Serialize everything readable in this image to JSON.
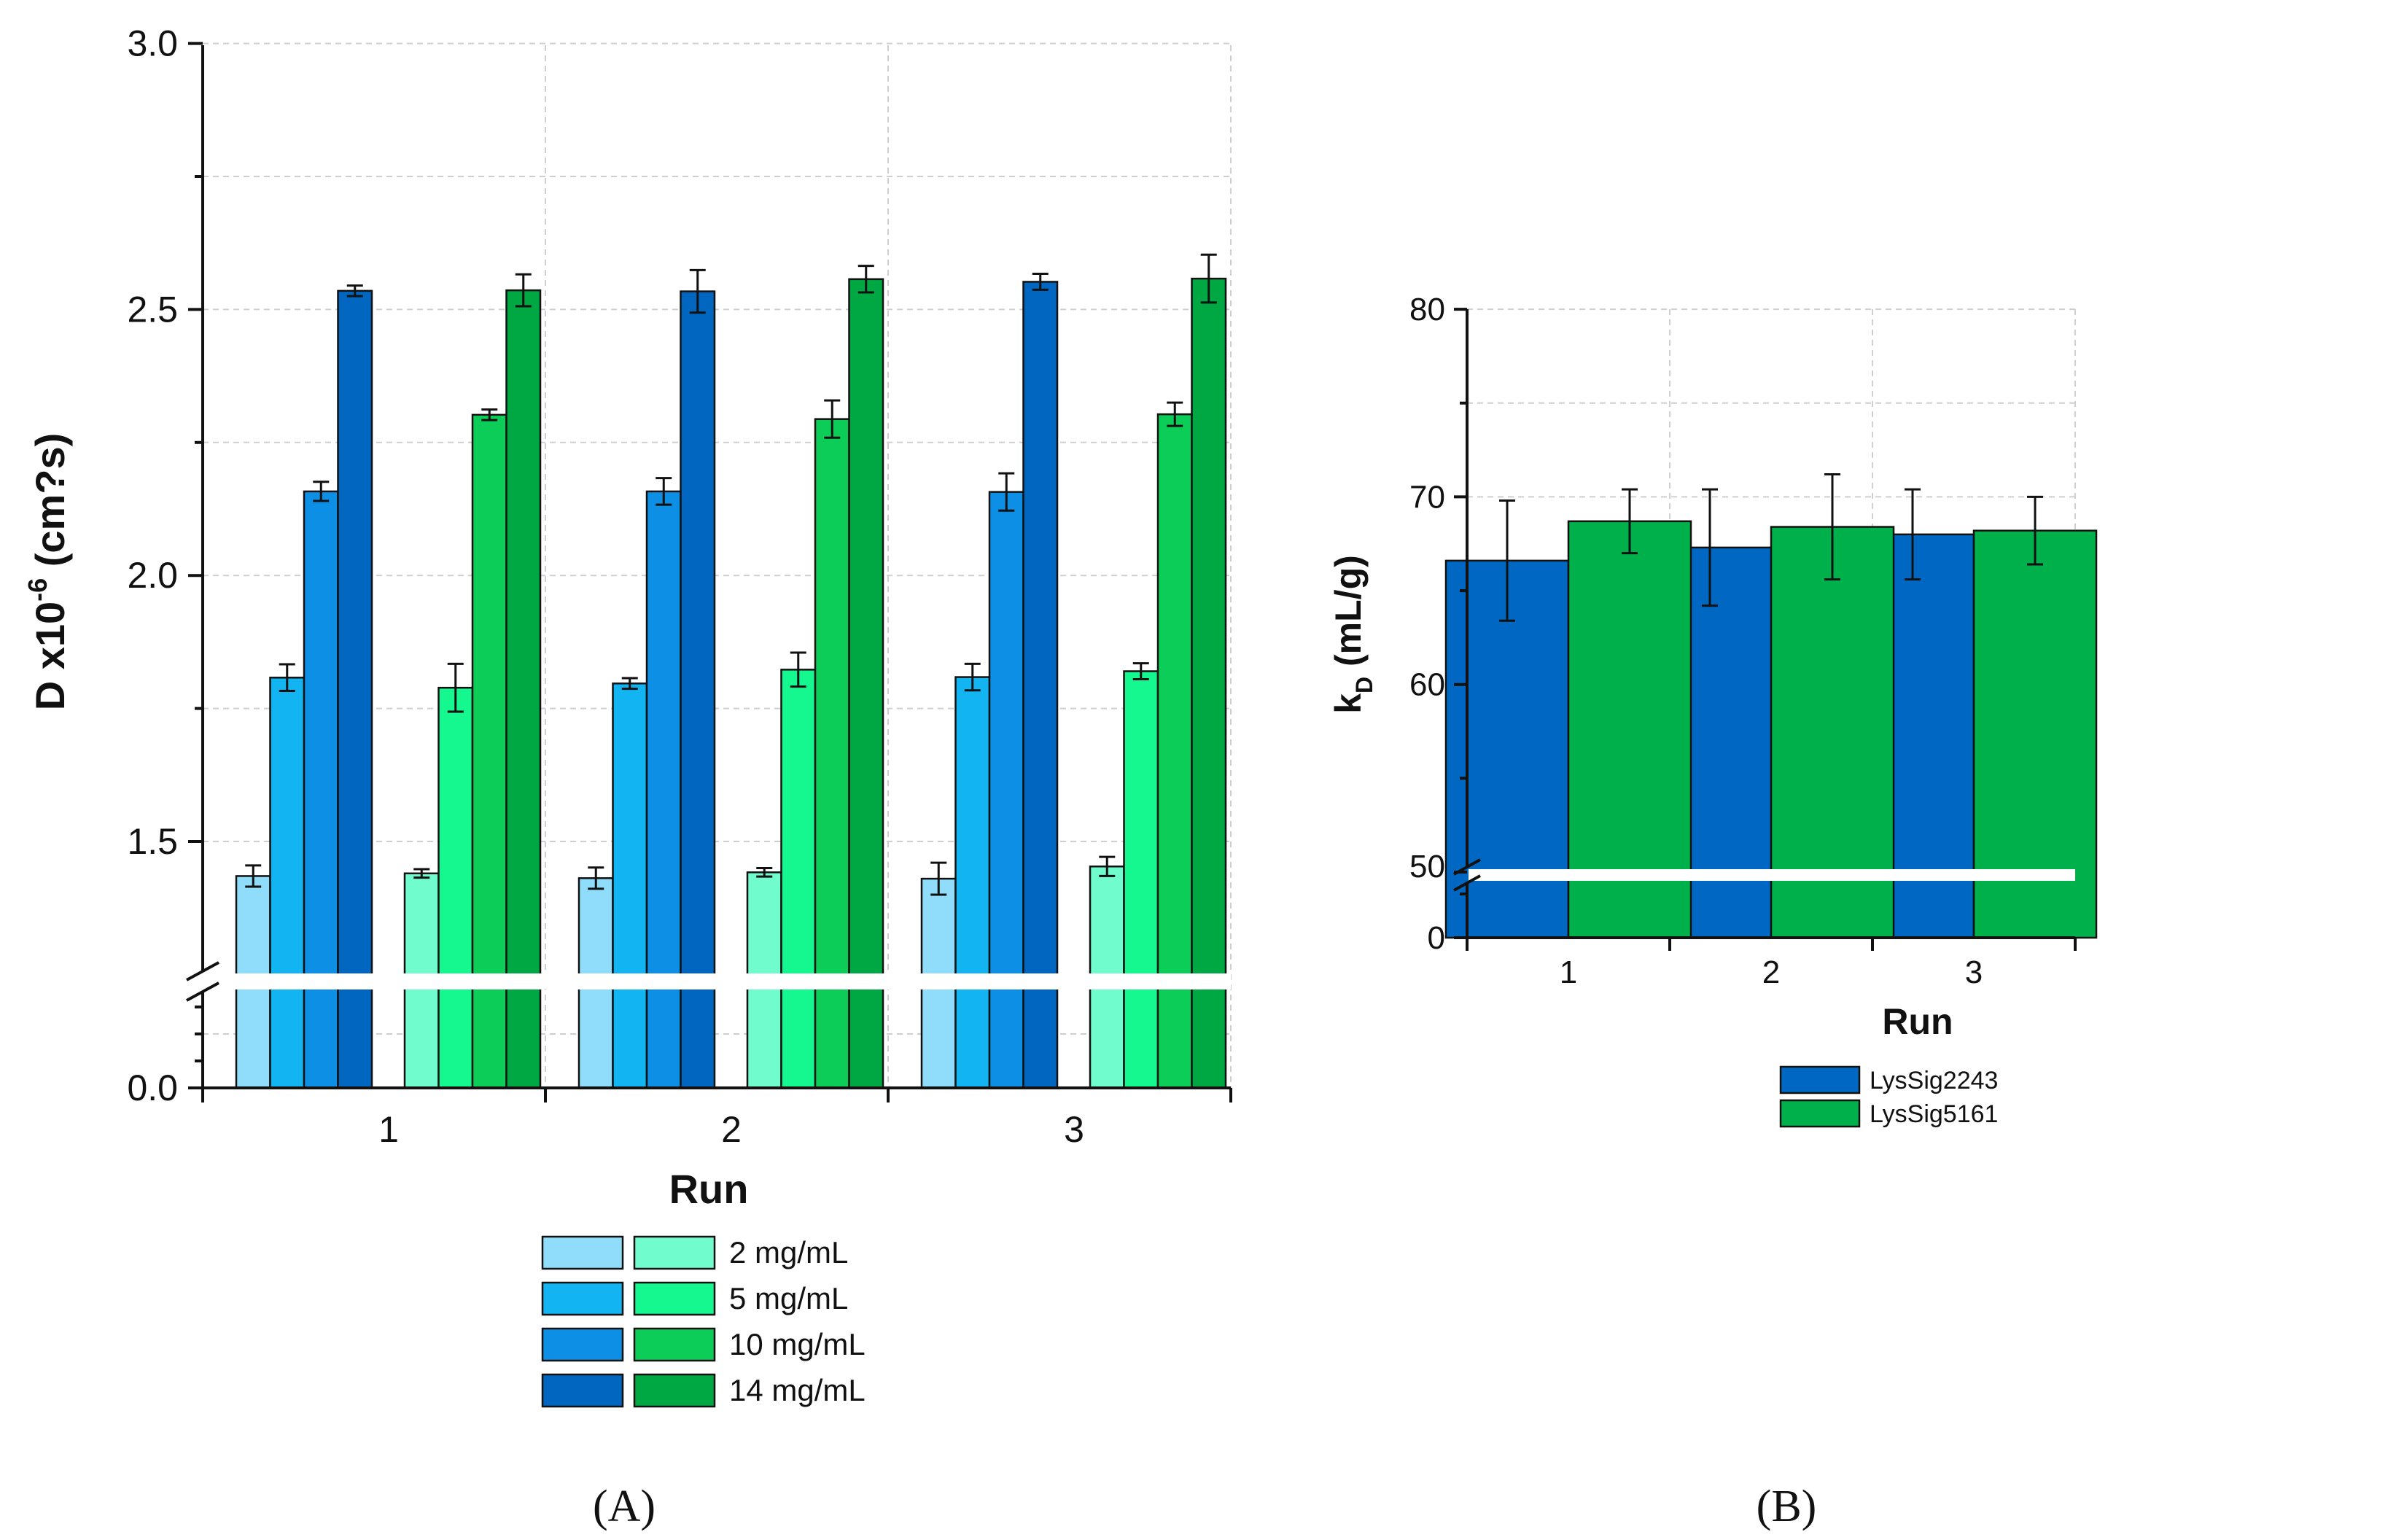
{
  "colors": {
    "blue": [
      "#8fdcfb",
      "#13b4f2",
      "#0e8fe6",
      "#0066bf"
    ],
    "green": [
      "#70fccc",
      "#15f78f",
      "#0ccd58",
      "#00a844"
    ],
    "b_blue": "#0068c2",
    "b_green": "#00b04a"
  },
  "chart_data": [
    {
      "panel": "(A)",
      "type": "bar",
      "title": "",
      "xlabel": "Run",
      "ylabel_main": "D x10",
      "ylabel_sup": "-6",
      "ylabel_tail": " (cm?s)",
      "categories": [
        "1",
        "2",
        "3"
      ],
      "ylim_upper": [
        1.25,
        3.0
      ],
      "ylim_lower": [
        0.0,
        0.2
      ],
      "axis_break": true,
      "yticks_upper": [
        "1.5",
        "2.0",
        "2.5",
        "3.0"
      ],
      "yticks_lower": [
        "0.0"
      ],
      "legend_labels": [
        "2 mg/mL",
        "5 mg/mL",
        "10 mg/mL",
        "14 mg/mL"
      ],
      "series": [
        {
          "name": "2 mg/mL (blue group)",
          "values": [
            1.435,
            1.431,
            1.43
          ],
          "errors": [
            0.02,
            0.02,
            0.03
          ]
        },
        {
          "name": "5 mg/mL (blue group)",
          "values": [
            1.808,
            1.797,
            1.809
          ],
          "errors": [
            0.025,
            0.01,
            0.025
          ]
        },
        {
          "name": "10 mg/mL (blue group)",
          "values": [
            2.158,
            2.158,
            2.157
          ],
          "errors": [
            0.018,
            0.025,
            0.035
          ]
        },
        {
          "name": "14 mg/mL (blue group)",
          "values": [
            2.535,
            2.534,
            2.552
          ],
          "errors": [
            0.01,
            0.04,
            0.015
          ]
        },
        {
          "name": "2 mg/mL (green group)",
          "values": [
            1.44,
            1.442,
            1.453
          ],
          "errors": [
            0.008,
            0.008,
            0.018
          ]
        },
        {
          "name": "5 mg/mL (green group)",
          "values": [
            1.789,
            1.823,
            1.82
          ],
          "errors": [
            0.045,
            0.032,
            0.015
          ]
        },
        {
          "name": "10 mg/mL (green group)",
          "values": [
            2.302,
            2.294,
            2.303
          ],
          "errors": [
            0.01,
            0.035,
            0.022
          ]
        },
        {
          "name": "14 mg/mL (green group)",
          "values": [
            2.536,
            2.557,
            2.558
          ],
          "errors": [
            0.03,
            0.025,
            0.045
          ]
        }
      ]
    },
    {
      "panel": "(B)",
      "type": "bar",
      "title": "",
      "xlabel": "Run",
      "ylabel_main": "k",
      "ylabel_sub": "D",
      "ylabel_tail": " (mL/g)",
      "categories": [
        "1",
        "2",
        "3"
      ],
      "ylim_upper": [
        50,
        80
      ],
      "ylim_lower": [
        0,
        5
      ],
      "axis_break": true,
      "yticks_upper": [
        "50",
        "60",
        "70",
        "80"
      ],
      "yticks_lower": [
        "0"
      ],
      "series": [
        {
          "name": "LysSig2243",
          "values": [
            66.6,
            67.3,
            68.0
          ],
          "errors": [
            3.2,
            3.1,
            2.4
          ]
        },
        {
          "name": "LysSig5161",
          "values": [
            68.7,
            68.4,
            68.2
          ],
          "errors": [
            1.7,
            2.8,
            1.8
          ]
        }
      ]
    }
  ]
}
